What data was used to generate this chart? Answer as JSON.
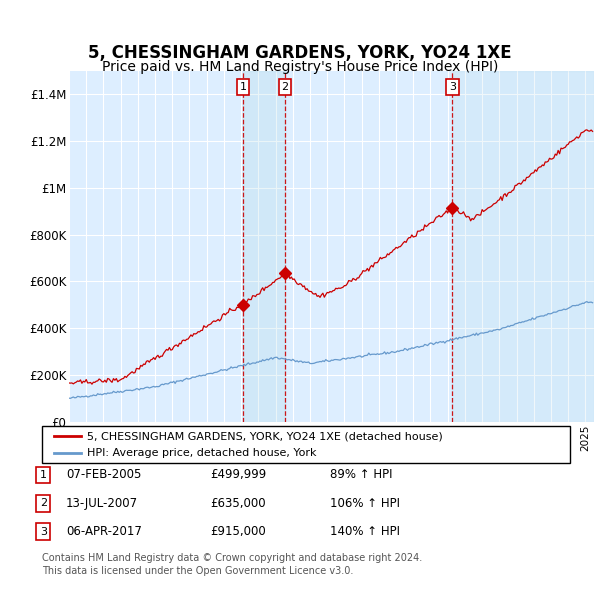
{
  "title": "5, CHESSINGHAM GARDENS, YORK, YO24 1XE",
  "subtitle": "Price paid vs. HM Land Registry's House Price Index (HPI)",
  "title_fontsize": 12,
  "subtitle_fontsize": 10,
  "ylabel_ticks": [
    "£0",
    "£200K",
    "£400K",
    "£600K",
    "£800K",
    "£1M",
    "£1.2M",
    "£1.4M"
  ],
  "ytick_values": [
    0,
    200000,
    400000,
    600000,
    800000,
    1000000,
    1200000,
    1400000
  ],
  "ylim": [
    0,
    1500000
  ],
  "xlim_start": 1995.0,
  "xlim_end": 2025.5,
  "sale_events": [
    {
      "num": 1,
      "year": 2005.1,
      "price": 499999,
      "label": "07-FEB-2005",
      "price_label": "£499,999",
      "pct": "89% ↑ HPI"
    },
    {
      "num": 2,
      "year": 2007.55,
      "price": 635000,
      "label": "13-JUL-2007",
      "price_label": "£635,000",
      "pct": "106% ↑ HPI"
    },
    {
      "num": 3,
      "year": 2017.27,
      "price": 915000,
      "label": "06-APR-2017",
      "price_label": "£915,000",
      "pct": "140% ↑ HPI"
    }
  ],
  "legend_line1": "5, CHESSINGHAM GARDENS, YORK, YO24 1XE (detached house)",
  "legend_line2": "HPI: Average price, detached house, York",
  "footer1": "Contains HM Land Registry data © Crown copyright and database right 2024.",
  "footer2": "This data is licensed under the Open Government Licence v3.0.",
  "red_color": "#cc0000",
  "blue_color": "#6699cc",
  "bg_color": "#ddeeff",
  "grid_color": "#ffffff",
  "box_color": "#cc0000",
  "dashed_color": "#cc0000"
}
